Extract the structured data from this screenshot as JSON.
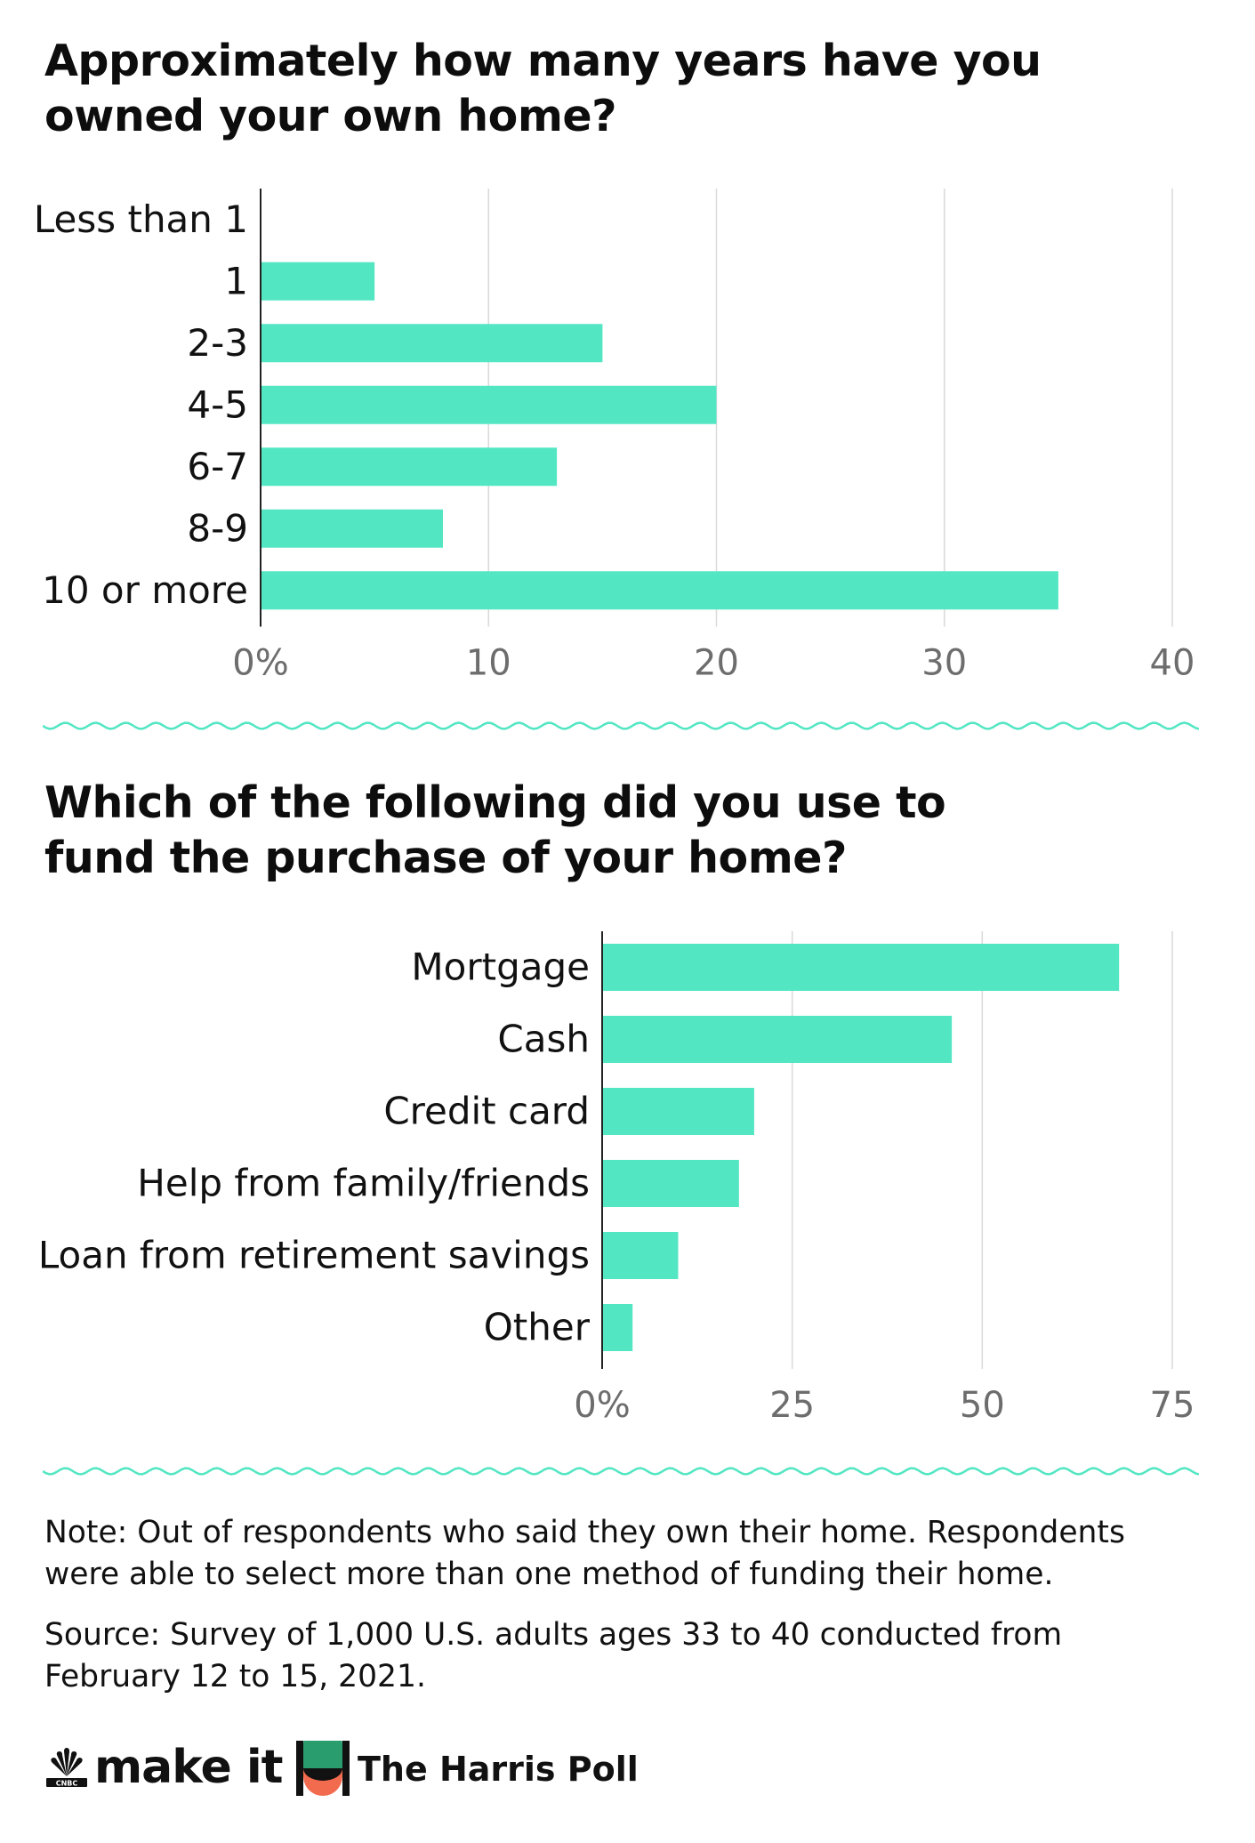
{
  "chart_data": [
    {
      "type": "bar",
      "orientation": "horizontal",
      "title": "Approximately how many years have you owned your own home?",
      "categories": [
        "Less than 1",
        "1",
        "2-3",
        "4-5",
        "6-7",
        "8-9",
        "10 or more"
      ],
      "values": [
        0,
        5,
        15,
        20,
        13,
        8,
        35
      ],
      "ticks": [
        "0%",
        "10",
        "20",
        "30",
        "40"
      ],
      "tick_values": [
        0,
        10,
        20,
        30,
        40
      ],
      "xlim": [
        0,
        40
      ],
      "grid": true,
      "bar_color": "#53e6c3"
    },
    {
      "type": "bar",
      "orientation": "horizontal",
      "title": "Which of the following did you use to fund the purchase of your home?",
      "categories": [
        "Mortgage",
        "Cash",
        "Credit card",
        "Help from family/friends",
        "Loan from retirement savings",
        "Other"
      ],
      "values": [
        68,
        46,
        20,
        18,
        10,
        4
      ],
      "ticks": [
        "0%",
        "25",
        "50",
        "75"
      ],
      "tick_values": [
        0,
        25,
        50,
        75
      ],
      "xlim": [
        0,
        75
      ],
      "grid": true,
      "bar_color": "#53e6c3"
    }
  ],
  "chart1": {
    "title_line1": "Approximately how many years have you",
    "title_line2": "owned your own home?"
  },
  "chart2": {
    "title_line1": "Which of the following did you use to",
    "title_line2": "fund the purchase of your home?"
  },
  "note": {
    "line1": "Note: Out of respondents who said they own their home. Respondents",
    "line2": "were able to select more than one method of funding their home."
  },
  "source": {
    "line1": "Source: Survey of 1,000 U.S. adults ages 33 to 40 conducted from",
    "line2": "February 12 to 15, 2021."
  },
  "logos": {
    "makeit": "make it",
    "harris": "The Harris Poll"
  },
  "colors": {
    "bar": "#53e6c3",
    "divider": "#53e6c3",
    "grid": "#d9d9d9",
    "axis": "#222222",
    "tick_text": "#6d6d6d",
    "harris_green": "#2a9d6f",
    "harris_coral": "#f26b4e"
  }
}
